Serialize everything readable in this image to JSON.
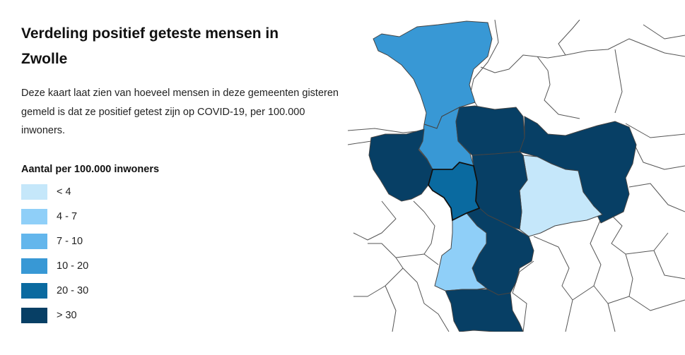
{
  "title": "Verdeling positief geteste mensen in Zwolle",
  "description": "Deze kaart laat zien van hoeveel mensen in deze gemeenten gisteren gemeld is dat ze positief getest zijn op COVID-19, per 100.000 inwoners.",
  "legend": {
    "title": "Aantal per 100.000 inwoners",
    "items": [
      {
        "label": "< 4",
        "color": "#c5e7fa"
      },
      {
        "label": "4 - 7",
        "color": "#8fcff8"
      },
      {
        "label": "7 - 10",
        "color": "#63b6ec"
      },
      {
        "label": "10 - 20",
        "color": "#3898d5"
      },
      {
        "label": "20 - 30",
        "color": "#0a6aa0"
      },
      {
        "label": "> 30",
        "color": "#073f65"
      }
    ]
  },
  "map": {
    "highlighted_municipality": "Zwolle",
    "regions": [
      {
        "id": "north",
        "category": "10 - 20"
      },
      {
        "id": "north-south",
        "category": "10 - 20"
      },
      {
        "id": "west",
        "category": "> 30"
      },
      {
        "id": "north-east-center",
        "category": "> 30"
      },
      {
        "id": "center-column",
        "category": "> 30"
      },
      {
        "id": "far-east",
        "category": "> 30"
      },
      {
        "id": "east-center",
        "category": "< 4"
      },
      {
        "id": "zwolle",
        "category": "20 - 30"
      },
      {
        "id": "south-light",
        "category": "4 - 7"
      },
      {
        "id": "south-dark-east",
        "category": "> 30"
      },
      {
        "id": "south-bottom",
        "category": "> 30"
      }
    ]
  }
}
